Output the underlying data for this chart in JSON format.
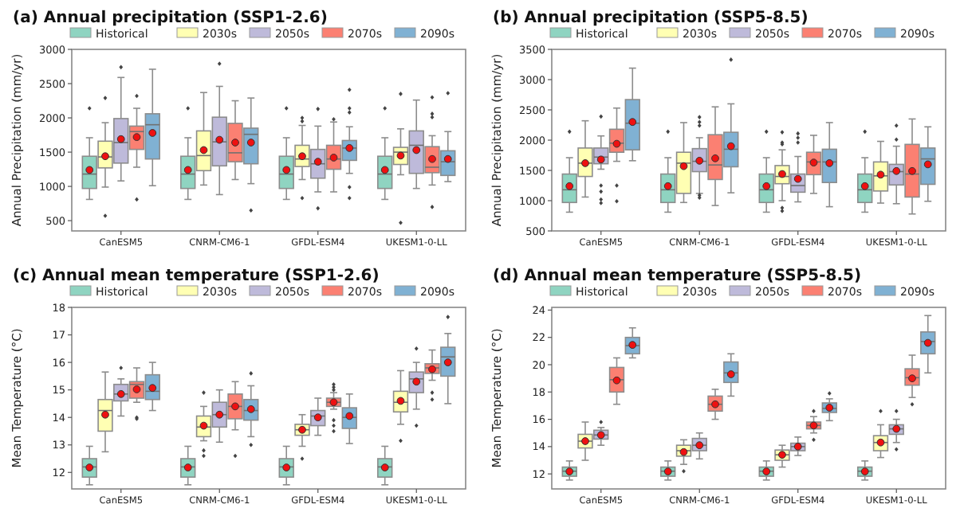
{
  "chart_data": [
    {
      "type": "box",
      "title": "(a) Annual precipitation (SSP1-2.6)",
      "ylabel": "Annual Precipitation (mm/yr)",
      "categories": [
        "CanESM5",
        "CNRM-CM6-1",
        "GFDL-ESM4",
        "UKESM1-0-LL"
      ],
      "ylim": [
        350,
        3000
      ],
      "yticks": [
        500,
        1000,
        1500,
        2000,
        2500,
        3000
      ],
      "legend": "top",
      "grid": false,
      "series": [
        {
          "name": "Historical",
          "color": "#8fd4c1",
          "boxes": [
            {
              "low": 810,
              "q1": 970,
              "median": 1180,
              "q3": 1440,
              "high": 1710,
              "mean": 1240,
              "outliers": [
                2140
              ]
            },
            {
              "low": 810,
              "q1": 970,
              "median": 1180,
              "q3": 1440,
              "high": 1710,
              "mean": 1240,
              "outliers": [
                2140
              ]
            },
            {
              "low": 810,
              "q1": 970,
              "median": 1180,
              "q3": 1440,
              "high": 1710,
              "mean": 1240,
              "outliers": [
                2140
              ]
            },
            {
              "low": 810,
              "q1": 970,
              "median": 1180,
              "q3": 1440,
              "high": 1710,
              "mean": 1240,
              "outliers": [
                2140
              ]
            }
          ]
        },
        {
          "name": "2030s",
          "color": "#ffffb3",
          "boxes": [
            {
              "low": 990,
              "q1": 1270,
              "median": 1430,
              "q3": 1660,
              "high": 1930,
              "mean": 1440,
              "outliers": [
                2290,
                570
              ]
            },
            {
              "low": 1020,
              "q1": 1230,
              "median": 1450,
              "q3": 1810,
              "high": 2370,
              "mean": 1530
            },
            {
              "low": 1100,
              "q1": 1290,
              "median": 1400,
              "q3": 1600,
              "high": 1890,
              "mean": 1440,
              "outliers": [
                1950,
                2000,
                830
              ]
            },
            {
              "low": 1170,
              "q1": 1320,
              "median": 1500,
              "q3": 1570,
              "high": 1840,
              "mean": 1450,
              "outliers": [
                2350,
                470
              ]
            }
          ]
        },
        {
          "name": "2050s",
          "color": "#bebada",
          "boxes": [
            {
              "low": 1080,
              "q1": 1340,
              "median": 1640,
              "q3": 1990,
              "high": 2590,
              "mean": 1690,
              "outliers": [
                2740
              ]
            },
            {
              "low": 880,
              "q1": 1300,
              "median": 1650,
              "q3": 2010,
              "high": 2460,
              "mean": 1680,
              "outliers": [
                2790
              ]
            },
            {
              "low": 920,
              "q1": 1120,
              "median": 1330,
              "q3": 1540,
              "high": 1880,
              "mean": 1360,
              "outliers": [
                2130,
                680
              ]
            },
            {
              "low": 970,
              "q1": 1190,
              "median": 1600,
              "q3": 1810,
              "high": 2260,
              "mean": 1530
            }
          ]
        },
        {
          "name": "2070s",
          "color": "#fb8072",
          "boxes": [
            {
              "low": 1280,
              "q1": 1540,
              "median": 1800,
              "q3": 1880,
              "high": 2140,
              "mean": 1720,
              "outliers": [
                2320,
                810
              ]
            },
            {
              "low": 1100,
              "q1": 1360,
              "median": 1490,
              "q3": 1920,
              "high": 2250,
              "mean": 1640
            },
            {
              "low": 920,
              "q1": 1250,
              "median": 1400,
              "q3": 1600,
              "high": 1940,
              "mean": 1420,
              "outliers": [
                1980
              ]
            },
            {
              "low": 1020,
              "q1": 1200,
              "median": 1280,
              "q3": 1580,
              "high": 1740,
              "mean": 1400,
              "outliers": [
                2300,
                2060,
                2010,
                700
              ]
            }
          ]
        },
        {
          "name": "2090s",
          "color": "#80b1d3",
          "boxes": [
            {
              "low": 1010,
              "q1": 1400,
              "median": 1900,
              "q3": 2060,
              "high": 2710,
              "mean": 1780
            },
            {
              "low": 1040,
              "q1": 1330,
              "median": 1760,
              "q3": 1850,
              "high": 2290,
              "mean": 1640,
              "outliers": [
                650
              ]
            },
            {
              "low": 1190,
              "q1": 1380,
              "median": 1560,
              "q3": 1670,
              "high": 1870,
              "mean": 1560,
              "outliers": [
                2410,
                2140,
                2080,
                990,
                830
              ]
            },
            {
              "low": 1070,
              "q1": 1160,
              "median": 1360,
              "q3": 1520,
              "high": 1800,
              "mean": 1400,
              "outliers": [
                2360
              ]
            }
          ]
        }
      ]
    },
    {
      "type": "box",
      "title": "(b) Annual precipitation (SSP5-8.5)",
      "ylabel": "Annual Precipitation (mm/yr)",
      "categories": [
        "CanESM5",
        "CNRM-CM6-1",
        "GFDL-ESM4",
        "UKESM1-0-LL"
      ],
      "ylim": [
        500,
        3500
      ],
      "yticks": [
        500,
        1000,
        1500,
        2000,
        2500,
        3000,
        3500
      ],
      "legend": "top",
      "grid": false,
      "series": [
        {
          "name": "Historical",
          "color": "#8fd4c1",
          "boxes": [
            {
              "low": 810,
              "q1": 970,
              "median": 1180,
              "q3": 1440,
              "high": 1710,
              "mean": 1240,
              "outliers": [
                2140
              ]
            },
            {
              "low": 810,
              "q1": 970,
              "median": 1180,
              "q3": 1440,
              "high": 1710,
              "mean": 1240,
              "outliers": [
                2140
              ]
            },
            {
              "low": 810,
              "q1": 970,
              "median": 1180,
              "q3": 1440,
              "high": 1710,
              "mean": 1240,
              "outliers": [
                2140
              ]
            },
            {
              "low": 810,
              "q1": 970,
              "median": 1180,
              "q3": 1440,
              "high": 1710,
              "mean": 1240,
              "outliers": [
                2140
              ]
            }
          ]
        },
        {
          "name": "2030s",
          "color": "#ffffb3",
          "boxes": [
            {
              "low": 1060,
              "q1": 1400,
              "median": 1620,
              "q3": 1870,
              "high": 2320,
              "mean": 1620
            },
            {
              "low": 970,
              "q1": 1120,
              "median": 1620,
              "q3": 1800,
              "high": 2290,
              "mean": 1570
            },
            {
              "low": 1000,
              "q1": 1280,
              "median": 1400,
              "q3": 1580,
              "high": 1840,
              "mean": 1440,
              "outliers": [
                2130,
                1960,
                1930,
                880,
                830
              ]
            },
            {
              "low": 960,
              "q1": 1160,
              "median": 1410,
              "q3": 1640,
              "high": 1980,
              "mean": 1430
            }
          ]
        },
        {
          "name": "2050s",
          "color": "#bebada",
          "boxes": [
            {
              "low": 1520,
              "q1": 1610,
              "median": 1720,
              "q3": 1870,
              "high": 2070,
              "mean": 1680,
              "outliers": [
                2390,
                1250,
                1150,
                1020,
                960
              ]
            },
            {
              "low": 1120,
              "q1": 1480,
              "median": 1650,
              "q3": 1860,
              "high": 2040,
              "mean": 1660,
              "outliers": [
                2380,
                2300,
                2240,
                1090,
                1050
              ]
            },
            {
              "low": 980,
              "q1": 1140,
              "median": 1250,
              "q3": 1440,
              "high": 1730,
              "mean": 1360,
              "outliers": [
                2110,
                2040,
                1960
              ]
            },
            {
              "low": 950,
              "q1": 1260,
              "median": 1480,
              "q3": 1600,
              "high": 1900,
              "mean": 1490,
              "outliers": [
                2240,
                2010
              ]
            }
          ]
        },
        {
          "name": "2070s",
          "color": "#fb8072",
          "boxes": [
            {
              "low": 1650,
              "q1": 1800,
              "median": 1950,
              "q3": 2180,
              "high": 2530,
              "mean": 1940,
              "outliers": [
                1250,
                990
              ]
            },
            {
              "low": 920,
              "q1": 1350,
              "median": 1590,
              "q3": 2090,
              "high": 2550,
              "mean": 1700
            },
            {
              "low": 1120,
              "q1": 1430,
              "median": 1640,
              "q3": 1800,
              "high": 2080,
              "mean": 1630
            },
            {
              "low": 780,
              "q1": 1060,
              "median": 1440,
              "q3": 1930,
              "high": 2350,
              "mean": 1490
            }
          ]
        },
        {
          "name": "2090s",
          "color": "#80b1d3",
          "boxes": [
            {
              "low": 1660,
              "q1": 1840,
              "median": 2280,
              "q3": 2670,
              "high": 3190,
              "mean": 2300
            },
            {
              "low": 1130,
              "q1": 1560,
              "median": 1850,
              "q3": 2130,
              "high": 2600,
              "mean": 1900,
              "outliers": [
                3330
              ]
            },
            {
              "low": 900,
              "q1": 1300,
              "median": 1640,
              "q3": 1850,
              "high": 2290,
              "mean": 1620
            },
            {
              "low": 990,
              "q1": 1270,
              "median": 1690,
              "q3": 1870,
              "high": 2220,
              "mean": 1600
            }
          ]
        }
      ]
    },
    {
      "type": "box",
      "title": "(c) Annual mean temperature (SSP1-2.6)",
      "ylabel": "Mean Temperature (°C)",
      "categories": [
        "CanESM5",
        "CNRM-CM6-1",
        "GFDL-ESM4",
        "UKESM1-0-LL"
      ],
      "ylim": [
        11.4,
        18
      ],
      "yticks": [
        12,
        13,
        14,
        15,
        16,
        17,
        18
      ],
      "legend": "top",
      "grid": false,
      "series": [
        {
          "name": "Historical",
          "color": "#8fd4c1",
          "boxes": [
            {
              "low": 11.55,
              "q1": 11.83,
              "median": 12.2,
              "q3": 12.5,
              "high": 12.95,
              "mean": 12.18
            },
            {
              "low": 11.55,
              "q1": 11.83,
              "median": 12.2,
              "q3": 12.5,
              "high": 12.95,
              "mean": 12.18
            },
            {
              "low": 11.55,
              "q1": 11.83,
              "median": 12.2,
              "q3": 12.5,
              "high": 12.95,
              "mean": 12.18
            },
            {
              "low": 11.55,
              "q1": 11.83,
              "median": 12.2,
              "q3": 12.5,
              "high": 12.95,
              "mean": 12.18
            }
          ]
        },
        {
          "name": "2030s",
          "color": "#ffffb3",
          "boxes": [
            {
              "low": 12.75,
              "q1": 13.5,
              "median": 14.25,
              "q3": 14.65,
              "high": 15.65,
              "mean": 14.1
            },
            {
              "low": 13.15,
              "q1": 13.3,
              "median": 13.65,
              "q3": 14.05,
              "high": 14.4,
              "mean": 13.7,
              "outliers": [
                14.9,
                12.8,
                12.6
              ]
            },
            {
              "low": 12.95,
              "q1": 13.35,
              "median": 13.55,
              "q3": 13.75,
              "high": 14.1,
              "mean": 13.55,
              "outliers": [
                12.5
              ]
            },
            {
              "low": 13.75,
              "q1": 14.2,
              "median": 14.55,
              "q3": 14.95,
              "high": 15.7,
              "mean": 14.6,
              "outliers": [
                13.15
              ]
            }
          ]
        },
        {
          "name": "2050s",
          "color": "#bebada",
          "boxes": [
            {
              "low": 14.05,
              "q1": 14.6,
              "median": 14.85,
              "q3": 15.2,
              "high": 15.4,
              "mean": 14.85,
              "outliers": [
                15.8
              ]
            },
            {
              "low": 13.1,
              "q1": 13.65,
              "median": 14.1,
              "q3": 14.55,
              "high": 15.0,
              "mean": 14.1
            },
            {
              "low": 13.35,
              "q1": 13.7,
              "median": 14.05,
              "q3": 14.25,
              "high": 14.7,
              "mean": 14.0
            },
            {
              "low": 14.3,
              "q1": 14.9,
              "median": 15.4,
              "q3": 15.65,
              "high": 16.0,
              "mean": 15.3,
              "outliers": [
                16.5,
                13.7
              ]
            }
          ]
        },
        {
          "name": "2070s",
          "color": "#fb8072",
          "boxes": [
            {
              "low": 14.55,
              "q1": 14.7,
              "median": 15.2,
              "q3": 15.3,
              "high": 15.8,
              "mean": 15.02,
              "outliers": [
                14.0,
                13.95
              ]
            },
            {
              "low": 13.55,
              "q1": 13.95,
              "median": 14.4,
              "q3": 14.85,
              "high": 15.3,
              "mean": 14.4,
              "outliers": [
                12.6
              ]
            },
            {
              "low": 14.3,
              "q1": 14.4,
              "median": 14.55,
              "q3": 14.7,
              "high": 14.9,
              "mean": 14.55,
              "outliers": [
                15.2,
                15.1,
                15.0,
                13.9,
                13.7,
                13.5
              ]
            },
            {
              "low": 15.35,
              "q1": 15.6,
              "median": 15.8,
              "q3": 15.95,
              "high": 16.45,
              "mean": 15.75,
              "outliers": [
                14.9,
                14.65
              ]
            }
          ]
        },
        {
          "name": "2090s",
          "color": "#80b1d3",
          "boxes": [
            {
              "low": 14.25,
              "q1": 14.65,
              "median": 14.95,
              "q3": 15.55,
              "high": 16.0,
              "mean": 15.07
            },
            {
              "low": 13.3,
              "q1": 13.9,
              "median": 14.25,
              "q3": 14.65,
              "high": 15.15,
              "mean": 14.3,
              "outliers": [
                15.6,
                13.0
              ]
            },
            {
              "low": 13.05,
              "q1": 13.6,
              "median": 14.0,
              "q3": 14.35,
              "high": 14.85,
              "mean": 14.05
            },
            {
              "low": 14.5,
              "q1": 15.5,
              "median": 16.2,
              "q3": 16.55,
              "high": 17.05,
              "mean": 16.0,
              "outliers": [
                17.65
              ]
            }
          ]
        }
      ]
    },
    {
      "type": "box",
      "title": "(d) Annual mean temperature (SSP5-8.5)",
      "ylabel": "Mean Temperature (°C)",
      "categories": [
        "CanESM5",
        "CNRM-CM6-1",
        "GFDL-ESM4",
        "UKESM1-0-LL"
      ],
      "ylim": [
        10.9,
        24.2
      ],
      "yticks": [
        12,
        14,
        16,
        18,
        20,
        22,
        24
      ],
      "legend": "top",
      "grid": false,
      "series": [
        {
          "name": "Historical",
          "color": "#8fd4c1",
          "boxes": [
            {
              "low": 11.55,
              "q1": 11.83,
              "median": 12.2,
              "q3": 12.5,
              "high": 12.95,
              "mean": 12.18
            },
            {
              "low": 11.55,
              "q1": 11.83,
              "median": 12.2,
              "q3": 12.5,
              "high": 12.95,
              "mean": 12.18
            },
            {
              "low": 11.55,
              "q1": 11.83,
              "median": 12.2,
              "q3": 12.5,
              "high": 12.95,
              "mean": 12.18
            },
            {
              "low": 11.55,
              "q1": 11.83,
              "median": 12.2,
              "q3": 12.5,
              "high": 12.95,
              "mean": 12.18
            }
          ]
        },
        {
          "name": "2030s",
          "color": "#ffffb3",
          "boxes": [
            {
              "low": 13.0,
              "q1": 13.9,
              "median": 14.4,
              "q3": 14.9,
              "high": 15.8,
              "mean": 14.4
            },
            {
              "low": 12.7,
              "q1": 13.3,
              "median": 13.7,
              "q3": 14.1,
              "high": 14.5,
              "mean": 13.6,
              "outliers": [
                12.2
              ]
            },
            {
              "low": 12.5,
              "q1": 13.0,
              "median": 13.4,
              "q3": 13.75,
              "high": 14.1,
              "mean": 13.4
            },
            {
              "low": 13.2,
              "q1": 13.7,
              "median": 14.3,
              "q3": 14.8,
              "high": 15.6,
              "mean": 14.3,
              "outliers": [
                16.6
              ]
            }
          ]
        },
        {
          "name": "2050s",
          "color": "#bebada",
          "boxes": [
            {
              "low": 14.1,
              "q1": 14.55,
              "median": 14.85,
              "q3": 15.2,
              "high": 15.4,
              "mean": 14.85,
              "outliers": [
                15.8
              ]
            },
            {
              "low": 13.1,
              "q1": 13.7,
              "median": 14.1,
              "q3": 14.6,
              "high": 15.0,
              "mean": 14.1
            },
            {
              "low": 13.35,
              "q1": 13.7,
              "median": 14.0,
              "q3": 14.25,
              "high": 14.7,
              "mean": 14.0
            },
            {
              "low": 14.3,
              "q1": 14.9,
              "median": 15.3,
              "q3": 15.6,
              "high": 16.0,
              "mean": 15.3,
              "outliers": [
                16.6,
                13.8
              ]
            }
          ]
        },
        {
          "name": "2070s",
          "color": "#fb8072",
          "boxes": [
            {
              "low": 17.1,
              "q1": 18.0,
              "median": 18.9,
              "q3": 19.8,
              "high": 20.5,
              "mean": 18.85
            },
            {
              "low": 16.0,
              "q1": 16.6,
              "median": 17.1,
              "q3": 17.7,
              "high": 18.2,
              "mean": 17.1
            },
            {
              "low": 15.0,
              "q1": 15.3,
              "median": 15.55,
              "q3": 15.8,
              "high": 16.2,
              "mean": 15.55,
              "outliers": [
                16.6,
                14.5
              ]
            },
            {
              "low": 17.6,
              "q1": 18.5,
              "median": 19.05,
              "q3": 19.7,
              "high": 20.7,
              "mean": 19.0,
              "outliers": [
                17.1
              ]
            }
          ]
        },
        {
          "name": "2090s",
          "color": "#80b1d3",
          "boxes": [
            {
              "low": 20.5,
              "q1": 20.8,
              "median": 21.4,
              "q3": 22.0,
              "high": 22.7,
              "mean": 21.45
            },
            {
              "low": 17.7,
              "q1": 18.7,
              "median": 19.4,
              "q3": 20.2,
              "high": 20.8,
              "mean": 19.3
            },
            {
              "low": 15.9,
              "q1": 16.5,
              "median": 16.8,
              "q3": 17.2,
              "high": 17.5,
              "mean": 16.85,
              "outliers": [
                17.9
              ]
            },
            {
              "low": 19.4,
              "q1": 20.8,
              "median": 21.7,
              "q3": 22.4,
              "high": 23.6,
              "mean": 21.6
            }
          ]
        }
      ]
    }
  ]
}
